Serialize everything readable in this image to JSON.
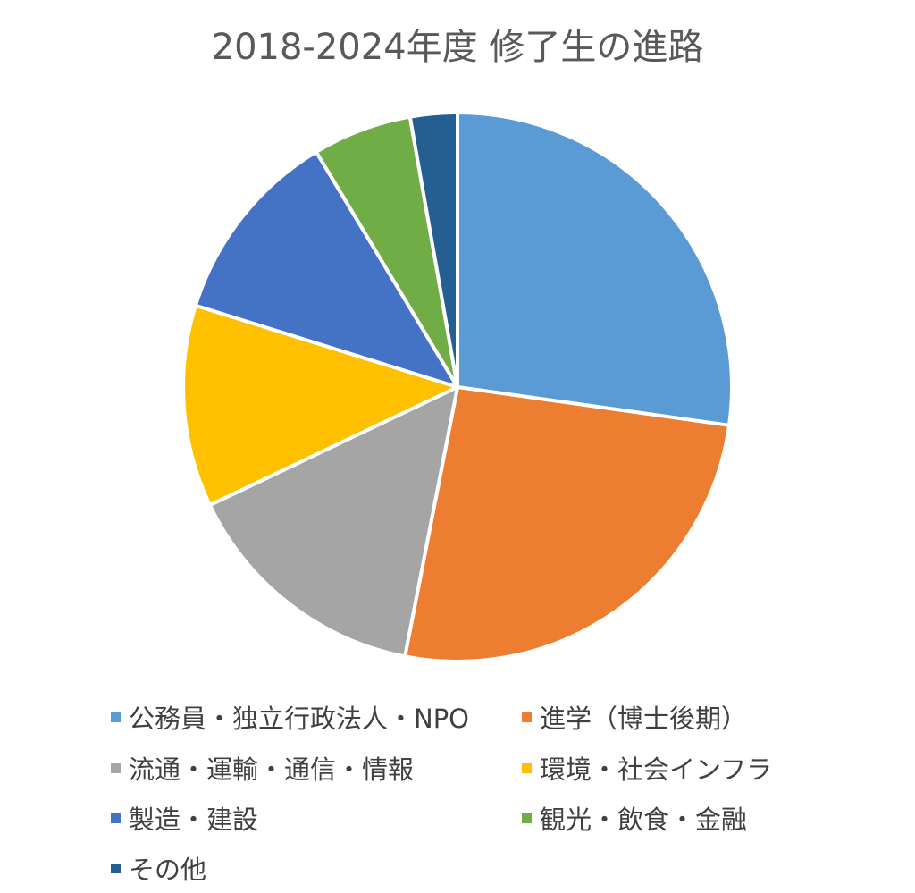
{
  "chart_data": {
    "type": "pie",
    "title": "2018-2024年度  修了生の進路",
    "legend_position": "bottom",
    "start_angle": "12 o'clock",
    "direction": "clockwise",
    "slices": [
      {
        "label": "公務員・独立行政法人・NPO",
        "value": 27.5,
        "color": "#5B9BD5"
      },
      {
        "label": "進学（博士後期）",
        "value": 26.1,
        "color": "#ED7D31"
      },
      {
        "label": "流通・運輸・通信・情報",
        "value": 15.0,
        "color": "#A5A5A5"
      },
      {
        "label": "環境・社会インフラ",
        "value": 12.0,
        "color": "#FFC000"
      },
      {
        "label": "製造・建設",
        "value": 11.7,
        "color": "#4472C4"
      },
      {
        "label": "観光・飲食・金融",
        "value": 5.9,
        "color": "#70AD47"
      },
      {
        "label": "その他",
        "value": 2.8,
        "color": "#255E91"
      }
    ]
  }
}
